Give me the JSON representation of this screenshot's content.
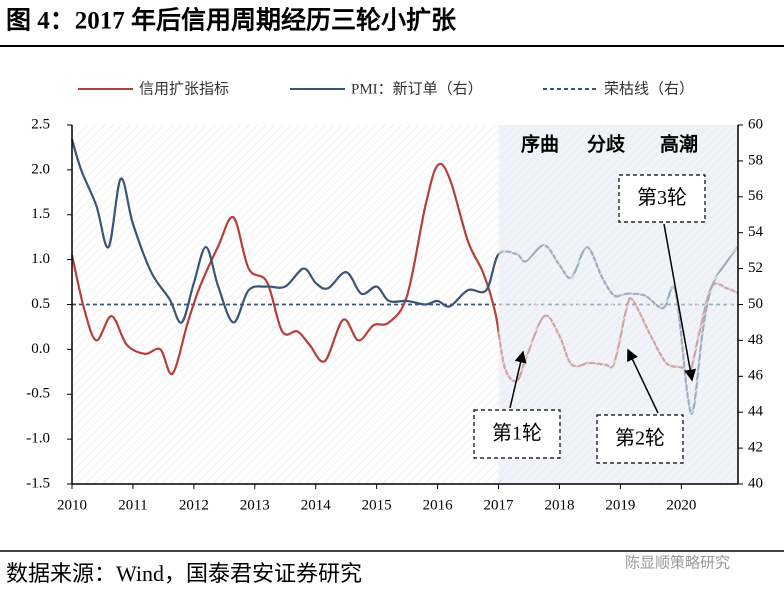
{
  "chart_data": {
    "type": "line",
    "title": "图 4：2017 年后信用周期经历三轮小扩张",
    "source": "数据来源：Wind，国泰君安证券研究",
    "watermark": "陈显顺策略研究",
    "xlim": [
      2010,
      2020.93
    ],
    "xticks": [
      2010,
      2011,
      2012,
      2013,
      2014,
      2015,
      2016,
      2017,
      2018,
      2019,
      2020
    ],
    "ylim": [
      -1.5,
      2.5
    ],
    "yticks": [
      2.5,
      {
        "value": 2,
        "label": "2.0"
      },
      1.5,
      {
        "value": 1,
        "label": "1.0"
      },
      0.5,
      {
        "value": 0,
        "label": "0.0"
      },
      -0.5,
      {
        "value": -1,
        "label": "-1.0"
      },
      -1.5
    ],
    "y2lim": [
      40,
      60
    ],
    "y2ticks": [
      40,
      42,
      44,
      46,
      48,
      50,
      52,
      54,
      56,
      58,
      60
    ],
    "shaded_regions": [
      [
        2017,
        2018.5
      ],
      [
        2018.5,
        2020.93
      ]
    ],
    "phase_labels": [
      "序曲",
      "分歧",
      "高潮"
    ],
    "annotations": [
      "第1轮",
      "第2轮",
      "第3轮"
    ],
    "series": [
      {
        "name": "信用扩张指标",
        "color": "#b5403a",
        "x": [
          2010.0,
          2010.2,
          2010.4,
          2010.65,
          2010.9,
          2011.2,
          2011.45,
          2011.65,
          2011.9,
          2012.1,
          2012.4,
          2012.65,
          2012.9,
          2013.2,
          2013.45,
          2013.7,
          2013.9,
          2014.15,
          2014.45,
          2014.7,
          2014.95,
          2015.2,
          2015.5,
          2015.8,
          2016.0,
          2016.2,
          2016.5,
          2016.75,
          2016.95,
          2017.1,
          2017.3,
          2017.45,
          2017.75,
          2018.0,
          2018.2,
          2018.5,
          2018.75,
          2018.9,
          2019.1,
          2019.2,
          2019.5,
          2019.75,
          2020.0,
          2020.15,
          2020.3,
          2020.5,
          2020.75,
          2020.92
        ],
        "values": [
          1.05,
          0.45,
          0.1,
          0.37,
          0.05,
          -0.05,
          0.0,
          -0.27,
          0.3,
          0.7,
          1.15,
          1.47,
          0.9,
          0.75,
          0.2,
          0.2,
          0.05,
          -0.13,
          0.33,
          0.1,
          0.27,
          0.3,
          0.6,
          1.6,
          2.05,
          1.9,
          1.2,
          0.85,
          0.4,
          -0.2,
          -0.35,
          -0.1,
          0.37,
          0.15,
          -0.17,
          -0.15,
          -0.17,
          -0.15,
          0.45,
          0.55,
          0.15,
          -0.15,
          -0.2,
          -0.23,
          0.2,
          0.7,
          0.68,
          0.63
        ]
      },
      {
        "name": "PMI：新订单（右）",
        "color": "#3b5576",
        "axis": "y2",
        "x": [
          2010.0,
          2010.15,
          2010.4,
          2010.6,
          2010.8,
          2011.0,
          2011.3,
          2011.6,
          2011.8,
          2012.0,
          2012.2,
          2012.4,
          2012.65,
          2012.9,
          2013.2,
          2013.5,
          2013.8,
          2014.0,
          2014.2,
          2014.5,
          2014.75,
          2015.0,
          2015.2,
          2015.5,
          2015.8,
          2016.0,
          2016.2,
          2016.5,
          2016.8,
          2017.0,
          2017.3,
          2017.45,
          2017.75,
          2018.0,
          2018.2,
          2018.45,
          2018.7,
          2018.9,
          2019.1,
          2019.4,
          2019.7,
          2019.9,
          2020.1,
          2020.2,
          2020.35,
          2020.5,
          2020.75,
          2020.92
        ],
        "values": [
          59.2,
          57.5,
          55.5,
          53.2,
          57.0,
          54.5,
          51.8,
          50.3,
          49.0,
          51.2,
          53.2,
          51.0,
          49.0,
          50.8,
          51.0,
          51.0,
          52.0,
          51.2,
          50.9,
          51.8,
          50.6,
          51.0,
          50.2,
          50.2,
          50.0,
          50.2,
          49.9,
          50.8,
          50.8,
          52.8,
          52.8,
          52.4,
          53.3,
          52.2,
          51.5,
          53.2,
          51.5,
          50.5,
          50.6,
          50.5,
          49.8,
          50.8,
          45.0,
          44.2,
          48.5,
          51.0,
          52.4,
          53.2
        ]
      }
    ],
    "reference_line": {
      "name": "荣枯线（右）",
      "color": "#3b5576",
      "value": 50,
      "axis": "y2"
    }
  }
}
